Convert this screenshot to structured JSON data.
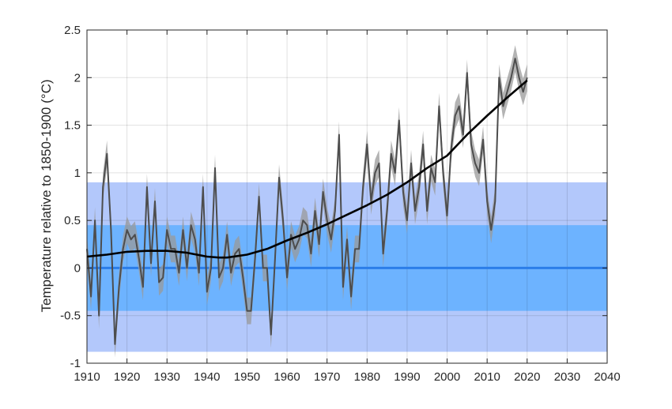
{
  "chart_data": {
    "type": "line",
    "title": "",
    "xlabel": "",
    "ylabel": "Temperature relative to 1850-1900 (°C)",
    "xlim": [
      1910,
      2040
    ],
    "ylim": [
      -1,
      2.5
    ],
    "xticks": [
      1910,
      1920,
      1930,
      1940,
      1950,
      1960,
      1970,
      1980,
      1990,
      2000,
      2010,
      2020,
      2030,
      2040
    ],
    "yticks": [
      -1,
      -0.5,
      0,
      0.5,
      1,
      1.5,
      2,
      2.5
    ],
    "grid": true,
    "legend": "none",
    "bands": [
      {
        "from": -0.88,
        "to": 0.9,
        "color": "#b3c8fb"
      },
      {
        "from": -0.45,
        "to": 0.45,
        "color": "#6db3ff"
      }
    ],
    "reference_line": {
      "y": 0,
      "color": "#2b7de9"
    },
    "annual": {
      "color": "#4d4d4d",
      "uncertainty_color": "#999999",
      "uncertainty": 0.14,
      "x": [
        1910,
        1911,
        1912,
        1913,
        1914,
        1915,
        1916,
        1917,
        1918,
        1919,
        1920,
        1921,
        1922,
        1923,
        1924,
        1925,
        1926,
        1927,
        1928,
        1929,
        1930,
        1931,
        1932,
        1933,
        1934,
        1935,
        1936,
        1937,
        1938,
        1939,
        1940,
        1941,
        1942,
        1943,
        1944,
        1945,
        1946,
        1947,
        1948,
        1949,
        1950,
        1951,
        1952,
        1953,
        1954,
        1955,
        1956,
        1957,
        1958,
        1959,
        1960,
        1961,
        1962,
        1963,
        1964,
        1965,
        1966,
        1967,
        1968,
        1969,
        1970,
        1971,
        1972,
        1973,
        1974,
        1975,
        1976,
        1977,
        1978,
        1979,
        1980,
        1981,
        1982,
        1983,
        1984,
        1985,
        1986,
        1987,
        1988,
        1989,
        1990,
        1991,
        1992,
        1993,
        1994,
        1995,
        1996,
        1997,
        1998,
        1999,
        2000,
        2001,
        2002,
        2003,
        2004,
        2005,
        2006,
        2007,
        2008,
        2009,
        2010,
        2011,
        2012,
        2013,
        2014,
        2015,
        2016,
        2017,
        2018,
        2019,
        2020
      ],
      "y": [
        0.2,
        -0.3,
        0.5,
        -0.5,
        0.85,
        1.2,
        0.4,
        -0.8,
        -0.2,
        0.2,
        0.4,
        0.3,
        0.35,
        0.1,
        -0.2,
        0.85,
        0.05,
        0.7,
        -0.15,
        -0.1,
        0.4,
        0.2,
        0.2,
        -0.05,
        0.4,
        0.0,
        0.45,
        0.3,
        -0.05,
        0.85,
        -0.25,
        0.0,
        1.05,
        -0.1,
        0.0,
        0.35,
        -0.05,
        0.15,
        0.2,
        -0.1,
        -0.45,
        -0.45,
        0.1,
        0.75,
        0.0,
        0.0,
        -0.7,
        0.1,
        0.95,
        0.5,
        -0.1,
        0.35,
        0.2,
        0.3,
        0.5,
        0.45,
        0.15,
        0.6,
        0.25,
        0.8,
        0.5,
        0.3,
        0.6,
        1.4,
        -0.2,
        0.3,
        -0.3,
        0.2,
        0.2,
        0.85,
        1.3,
        0.7,
        1.0,
        1.1,
        0.15,
        0.6,
        1.2,
        1.0,
        1.55,
        0.8,
        0.5,
        1.1,
        0.6,
        0.85,
        1.3,
        0.6,
        1.05,
        0.9,
        1.7,
        1.0,
        0.55,
        1.25,
        1.6,
        1.7,
        1.4,
        2.05,
        1.3,
        1.1,
        1.0,
        1.35,
        0.7,
        0.4,
        0.7,
        2.0,
        1.7,
        1.85,
        2.0,
        2.2,
        2.0,
        1.85,
        2.0
      ]
    },
    "smoothed": {
      "color": "#000000",
      "x": [
        1910,
        1915,
        1920,
        1925,
        1930,
        1935,
        1940,
        1943,
        1945,
        1950,
        1955,
        1960,
        1965,
        1970,
        1975,
        1980,
        1985,
        1990,
        1995,
        2000,
        2005,
        2010,
        2015,
        2020
      ],
      "y": [
        0.12,
        0.14,
        0.17,
        0.18,
        0.18,
        0.16,
        0.12,
        0.11,
        0.11,
        0.14,
        0.2,
        0.29,
        0.37,
        0.46,
        0.56,
        0.66,
        0.77,
        0.9,
        1.05,
        1.18,
        1.4,
        1.6,
        1.79,
        1.97
      ]
    }
  }
}
